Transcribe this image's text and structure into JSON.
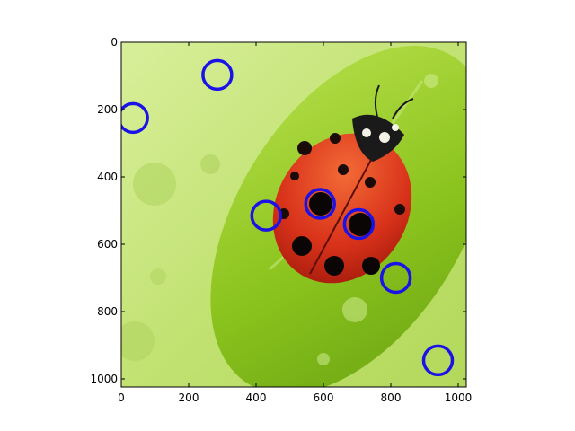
{
  "chart_data": {
    "type": "scatter",
    "title": "",
    "xlabel": "",
    "ylabel": "",
    "xlim": [
      0,
      1024
    ],
    "ylim": [
      1024,
      0
    ],
    "x_ticks": [
      0,
      200,
      400,
      600,
      800,
      1000
    ],
    "y_ticks": [
      0,
      200,
      400,
      600,
      800,
      1000
    ],
    "x_tick_labels": [
      "0",
      "200",
      "400",
      "600",
      "800",
      "1000"
    ],
    "y_tick_labels": [
      "0",
      "200",
      "400",
      "600",
      "800",
      "1000"
    ],
    "grid": false,
    "background_image": "ladybug-on-green-leaf",
    "marker": "open-circle",
    "marker_color": "#1a12e6",
    "series": [
      {
        "points": [
          {
            "x": 285,
            "y": 97
          },
          {
            "x": 35,
            "y": 225
          },
          {
            "x": 430,
            "y": 515
          },
          {
            "x": 590,
            "y": 480
          },
          {
            "x": 705,
            "y": 540
          },
          {
            "x": 815,
            "y": 700
          },
          {
            "x": 940,
            "y": 945
          }
        ]
      }
    ]
  }
}
